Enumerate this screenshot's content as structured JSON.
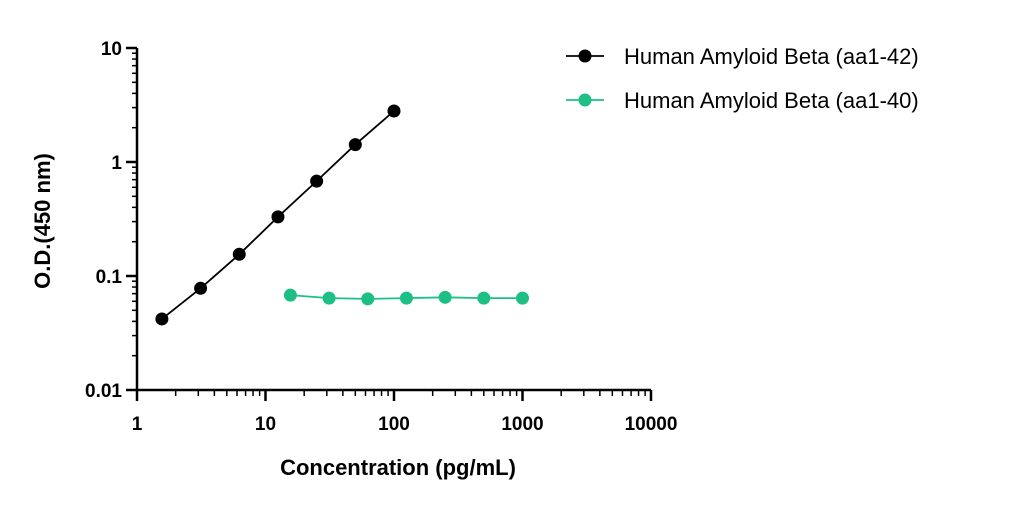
{
  "chart_data": {
    "type": "line",
    "xlabel": "Concentration (pg/mL)",
    "ylabel": "O.D.(450 nm)",
    "xscale": "log",
    "yscale": "log",
    "xlim": [
      1,
      10000
    ],
    "ylim": [
      0.01,
      10
    ],
    "xticks": [
      1,
      10,
      100,
      1000,
      10000
    ],
    "xtick_labels": [
      "1",
      "10",
      "100",
      "1000",
      "10000"
    ],
    "yticks": [
      0.01,
      0.1,
      1,
      10
    ],
    "ytick_labels": [
      "0.01",
      "0.1",
      "1",
      "10"
    ],
    "grid": false,
    "legend_position": "top-right",
    "series": [
      {
        "name": "Human Amyloid Beta (aa1-42)",
        "color": "#000000",
        "x": [
          1.5625,
          3.125,
          6.25,
          12.5,
          25,
          50,
          100
        ],
        "y": [
          0.042,
          0.078,
          0.155,
          0.33,
          0.68,
          1.42,
          2.8
        ]
      },
      {
        "name": "Human Amyloid Beta (aa1-40)",
        "color": "#1dbf85",
        "x": [
          15.625,
          31.25,
          62.5,
          125,
          250,
          500,
          1000
        ],
        "y": [
          0.068,
          0.064,
          0.063,
          0.064,
          0.065,
          0.064,
          0.064
        ]
      }
    ]
  }
}
